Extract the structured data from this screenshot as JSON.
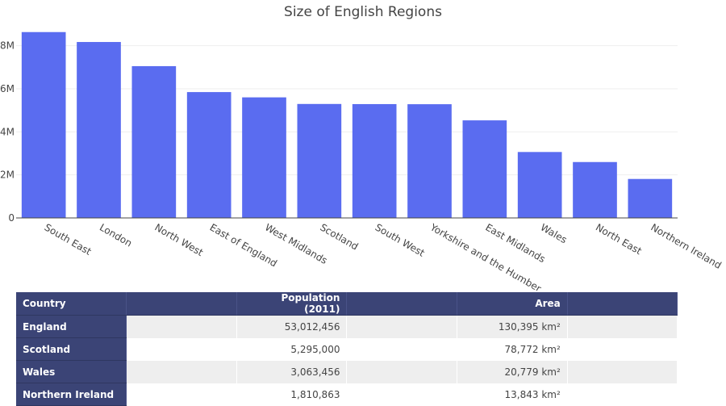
{
  "chart_data": {
    "type": "bar",
    "title": "Size of English Regions",
    "categories": [
      "South East",
      "London",
      "North West",
      "East of England",
      "West Midlands",
      "Scotland",
      "South West",
      "Yorkshire and the Humber",
      "East Midlands",
      "Wales",
      "North East",
      "Northern Ireland"
    ],
    "values": [
      8634750,
      8173941,
      7052177,
      5846965,
      5601847,
      5295000,
      5288935,
      5283733,
      4533222,
      3063456,
      2596886,
      1810863
    ],
    "ytick_labels": [
      "0",
      "2M",
      "4M",
      "6M",
      "8M"
    ],
    "ytick_values": [
      0,
      2000000,
      4000000,
      6000000,
      8000000
    ],
    "ylim": [
      0,
      9000000
    ],
    "bar_color": "#5a6cf0",
    "grid": true
  },
  "table": {
    "headers": [
      "Country",
      "Population (2011)",
      "Area"
    ],
    "rows": [
      [
        "England",
        "53,012,456",
        "130,395 km²"
      ],
      [
        "Scotland",
        "5,295,000",
        "78,772 km²"
      ],
      [
        "Wales",
        "3,063,456",
        "20,779 km²"
      ],
      [
        "Northern Ireland",
        "1,810,863",
        "13,843 km²"
      ]
    ],
    "header_color": "#3b4476"
  }
}
